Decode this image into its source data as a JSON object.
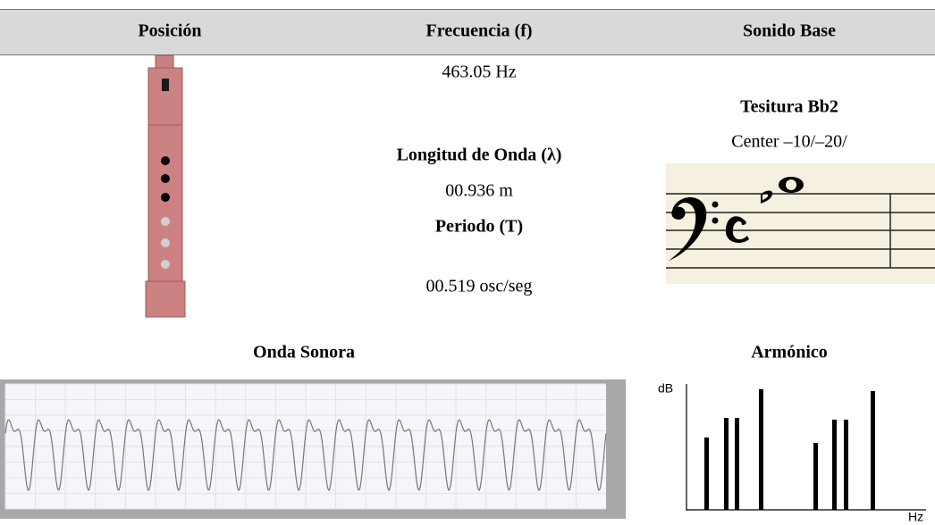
{
  "header": [
    "Posición",
    "Frecuencia (f)",
    "Sonido Base"
  ],
  "middle": [
    "463.05 Hz",
    "Longitud de Onda (λ)",
    "00.936 m",
    "Periodo (T)",
    "00.519 osc/seg"
  ],
  "right": [
    "Tesitura Bb2",
    "Center –10/–20/"
  ],
  "sections": [
    "Onda Sonora",
    "Armónico"
  ],
  "harmonic_chart": {
    "y_label": "dB",
    "x_label": "Hz"
  }
}
